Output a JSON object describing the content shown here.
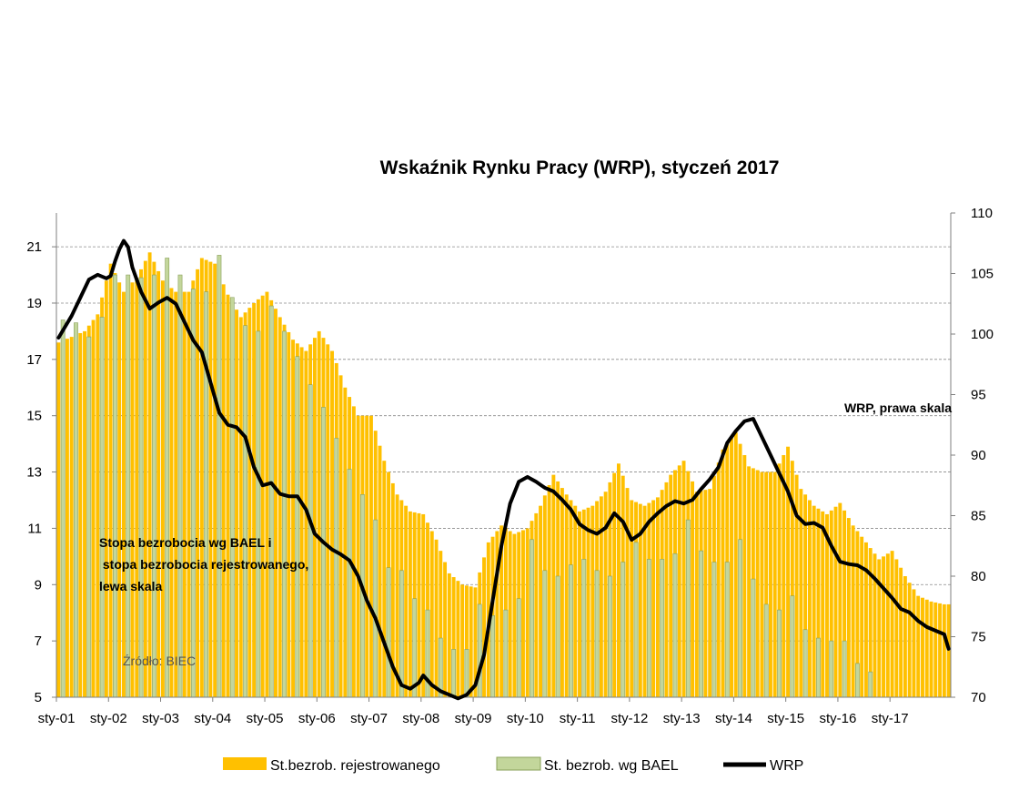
{
  "chart_data": {
    "type": "bar+line",
    "title": "Wskaźnik Rynku Pracy (WRP), styczeń 2017",
    "x_tick_labels": [
      "sty-01",
      "sty-02",
      "sty-03",
      "sty-04",
      "sty-05",
      "sty-06",
      "sty-07",
      "sty-08",
      "sty-09",
      "sty-10",
      "sty-11",
      "sty-12",
      "sty-13",
      "sty-14",
      "sty-15",
      "sty-16",
      "sty-17"
    ],
    "left_axis": {
      "ticks": [
        5,
        7,
        9,
        11,
        13,
        15,
        17,
        19,
        21
      ],
      "range": [
        5,
        22.2
      ]
    },
    "right_axis": {
      "ticks": [
        70,
        75,
        80,
        85,
        90,
        95,
        100,
        105,
        110
      ],
      "range": [
        70,
        110
      ]
    },
    "annotations": {
      "left_scale_lines": [
        "Stopa bezrobocia wg BAEL i",
        " stopa bezrobocia rejestrowanego,",
        "lewa skala"
      ],
      "right_scale": "WRP, prawa skala",
      "source": "Źródło: BIEC"
    },
    "series": [
      {
        "name": "St.bezrob. rejestrowanego",
        "type": "bar",
        "axis": "left",
        "color": "#ffc000",
        "anchors": [
          [
            0,
            17.6
          ],
          [
            6,
            18.0
          ],
          [
            9,
            18.6
          ],
          [
            12,
            20.4
          ],
          [
            15,
            19.4
          ],
          [
            18,
            19.9
          ],
          [
            21,
            20.8
          ],
          [
            24,
            19.8
          ],
          [
            27,
            19.4
          ],
          [
            30,
            19.4
          ],
          [
            33,
            20.6
          ],
          [
            36,
            20.4
          ],
          [
            39,
            19.3
          ],
          [
            42,
            18.5
          ],
          [
            45,
            19.0
          ],
          [
            48,
            19.4
          ],
          [
            51,
            18.5
          ],
          [
            54,
            17.7
          ],
          [
            57,
            17.3
          ],
          [
            60,
            18.0
          ],
          [
            63,
            17.3
          ],
          [
            66,
            16.0
          ],
          [
            69,
            15.0
          ],
          [
            72,
            15.0
          ],
          [
            75,
            13.4
          ],
          [
            78,
            12.2
          ],
          [
            81,
            11.6
          ],
          [
            84,
            11.5
          ],
          [
            87,
            10.6
          ],
          [
            90,
            9.4
          ],
          [
            93,
            9.0
          ],
          [
            96,
            8.9
          ],
          [
            99,
            10.5
          ],
          [
            102,
            11.1
          ],
          [
            105,
            10.8
          ],
          [
            108,
            11.0
          ],
          [
            111,
            11.8
          ],
          [
            114,
            12.9
          ],
          [
            117,
            12.2
          ],
          [
            120,
            11.6
          ],
          [
            123,
            11.8
          ],
          [
            126,
            12.3
          ],
          [
            129,
            13.3
          ],
          [
            132,
            12.0
          ],
          [
            135,
            11.8
          ],
          [
            138,
            12.1
          ],
          [
            141,
            12.9
          ],
          [
            144,
            13.4
          ],
          [
            147,
            12.3
          ],
          [
            150,
            12.4
          ],
          [
            153,
            13.8
          ],
          [
            156,
            14.4
          ],
          [
            159,
            13.2
          ],
          [
            162,
            13.0
          ],
          [
            165,
            13.0
          ],
          [
            168,
            13.9
          ],
          [
            171,
            12.4
          ],
          [
            174,
            11.8
          ],
          [
            177,
            11.5
          ],
          [
            180,
            11.9
          ],
          [
            183,
            11.1
          ],
          [
            186,
            10.5
          ],
          [
            189,
            9.9
          ],
          [
            192,
            10.2
          ],
          [
            195,
            9.3
          ],
          [
            198,
            8.6
          ],
          [
            201,
            8.4
          ],
          [
            204,
            8.3
          ],
          [
            205,
            8.3
          ]
        ]
      },
      {
        "name": "St. bezrob. wg BAEL",
        "type": "bar",
        "axis": "left",
        "color": "#c3d69b",
        "quarterly_values": [
          18.4,
          18.3,
          17.8,
          18.5,
          20.0,
          20.0,
          19.9,
          20.0,
          20.6,
          20.0,
          19.5,
          19.4,
          20.7,
          19.2,
          18.2,
          18.0,
          18.9,
          18.0,
          17.1,
          16.1,
          15.3,
          14.2,
          13.1,
          12.2,
          11.3,
          9.6,
          9.5,
          8.5,
          8.1,
          7.1,
          6.7,
          6.7,
          8.3,
          7.9,
          8.1,
          8.5,
          10.6,
          9.5,
          9.3,
          9.7,
          9.9,
          9.5,
          9.3,
          9.8,
          10.5,
          9.9,
          9.9,
          10.1,
          11.3,
          10.2,
          9.8,
          9.8,
          10.6,
          9.2,
          8.3,
          8.1,
          8.6,
          7.4,
          7.1,
          7.0,
          7.0,
          6.2,
          5.9
        ]
      },
      {
        "name": "WRP",
        "type": "line",
        "axis": "right",
        "color": "#000000",
        "anchors": [
          [
            0,
            99.7
          ],
          [
            3,
            101.5
          ],
          [
            5,
            103.0
          ],
          [
            7,
            104.5
          ],
          [
            9,
            104.9
          ],
          [
            11,
            104.6
          ],
          [
            12,
            104.8
          ],
          [
            13,
            106.0
          ],
          [
            14,
            107.0
          ],
          [
            15,
            107.7
          ],
          [
            16,
            107.2
          ],
          [
            17,
            105.5
          ],
          [
            19,
            103.5
          ],
          [
            21,
            102.1
          ],
          [
            23,
            102.6
          ],
          [
            25,
            103.0
          ],
          [
            27,
            102.5
          ],
          [
            29,
            101.0
          ],
          [
            31,
            99.5
          ],
          [
            33,
            98.5
          ],
          [
            35,
            96.0
          ],
          [
            37,
            93.5
          ],
          [
            39,
            92.5
          ],
          [
            41,
            92.3
          ],
          [
            43,
            91.5
          ],
          [
            45,
            89.0
          ],
          [
            47,
            87.5
          ],
          [
            49,
            87.7
          ],
          [
            51,
            86.8
          ],
          [
            53,
            86.6
          ],
          [
            55,
            86.6
          ],
          [
            57,
            85.5
          ],
          [
            59,
            83.5
          ],
          [
            61,
            82.8
          ],
          [
            63,
            82.2
          ],
          [
            65,
            81.8
          ],
          [
            67,
            81.3
          ],
          [
            69,
            80.0
          ],
          [
            71,
            78.0
          ],
          [
            73,
            76.5
          ],
          [
            75,
            74.5
          ],
          [
            77,
            72.5
          ],
          [
            79,
            71.0
          ],
          [
            81,
            70.7
          ],
          [
            83,
            71.2
          ],
          [
            84,
            71.8
          ],
          [
            86,
            71.0
          ],
          [
            88,
            70.5
          ],
          [
            90,
            70.2
          ],
          [
            92,
            69.9
          ],
          [
            94,
            70.2
          ],
          [
            96,
            71.0
          ],
          [
            98,
            73.5
          ],
          [
            100,
            78.0
          ],
          [
            102,
            82.5
          ],
          [
            104,
            86.0
          ],
          [
            106,
            87.8
          ],
          [
            108,
            88.2
          ],
          [
            110,
            87.8
          ],
          [
            112,
            87.3
          ],
          [
            114,
            87.0
          ],
          [
            116,
            86.3
          ],
          [
            118,
            85.5
          ],
          [
            120,
            84.3
          ],
          [
            122,
            83.8
          ],
          [
            124,
            83.5
          ],
          [
            126,
            84.0
          ],
          [
            128,
            85.2
          ],
          [
            130,
            84.5
          ],
          [
            132,
            83.0
          ],
          [
            134,
            83.5
          ],
          [
            136,
            84.5
          ],
          [
            138,
            85.2
          ],
          [
            140,
            85.8
          ],
          [
            142,
            86.2
          ],
          [
            144,
            86.0
          ],
          [
            146,
            86.3
          ],
          [
            148,
            87.2
          ],
          [
            150,
            88.0
          ],
          [
            152,
            89.0
          ],
          [
            154,
            91.0
          ],
          [
            156,
            92.0
          ],
          [
            158,
            92.8
          ],
          [
            160,
            93.0
          ],
          [
            162,
            91.5
          ],
          [
            164,
            90.0
          ],
          [
            166,
            88.5
          ],
          [
            168,
            87.0
          ],
          [
            170,
            85.0
          ],
          [
            172,
            84.3
          ],
          [
            174,
            84.4
          ],
          [
            176,
            84.0
          ],
          [
            178,
            82.5
          ],
          [
            180,
            81.2
          ],
          [
            182,
            81.0
          ],
          [
            184,
            80.9
          ],
          [
            186,
            80.5
          ],
          [
            188,
            79.8
          ],
          [
            190,
            79.0
          ],
          [
            192,
            78.2
          ],
          [
            194,
            77.3
          ],
          [
            196,
            77.0
          ],
          [
            198,
            76.3
          ],
          [
            200,
            75.8
          ],
          [
            202,
            75.5
          ],
          [
            204,
            75.2
          ],
          [
            205,
            74.0
          ]
        ]
      }
    ]
  }
}
